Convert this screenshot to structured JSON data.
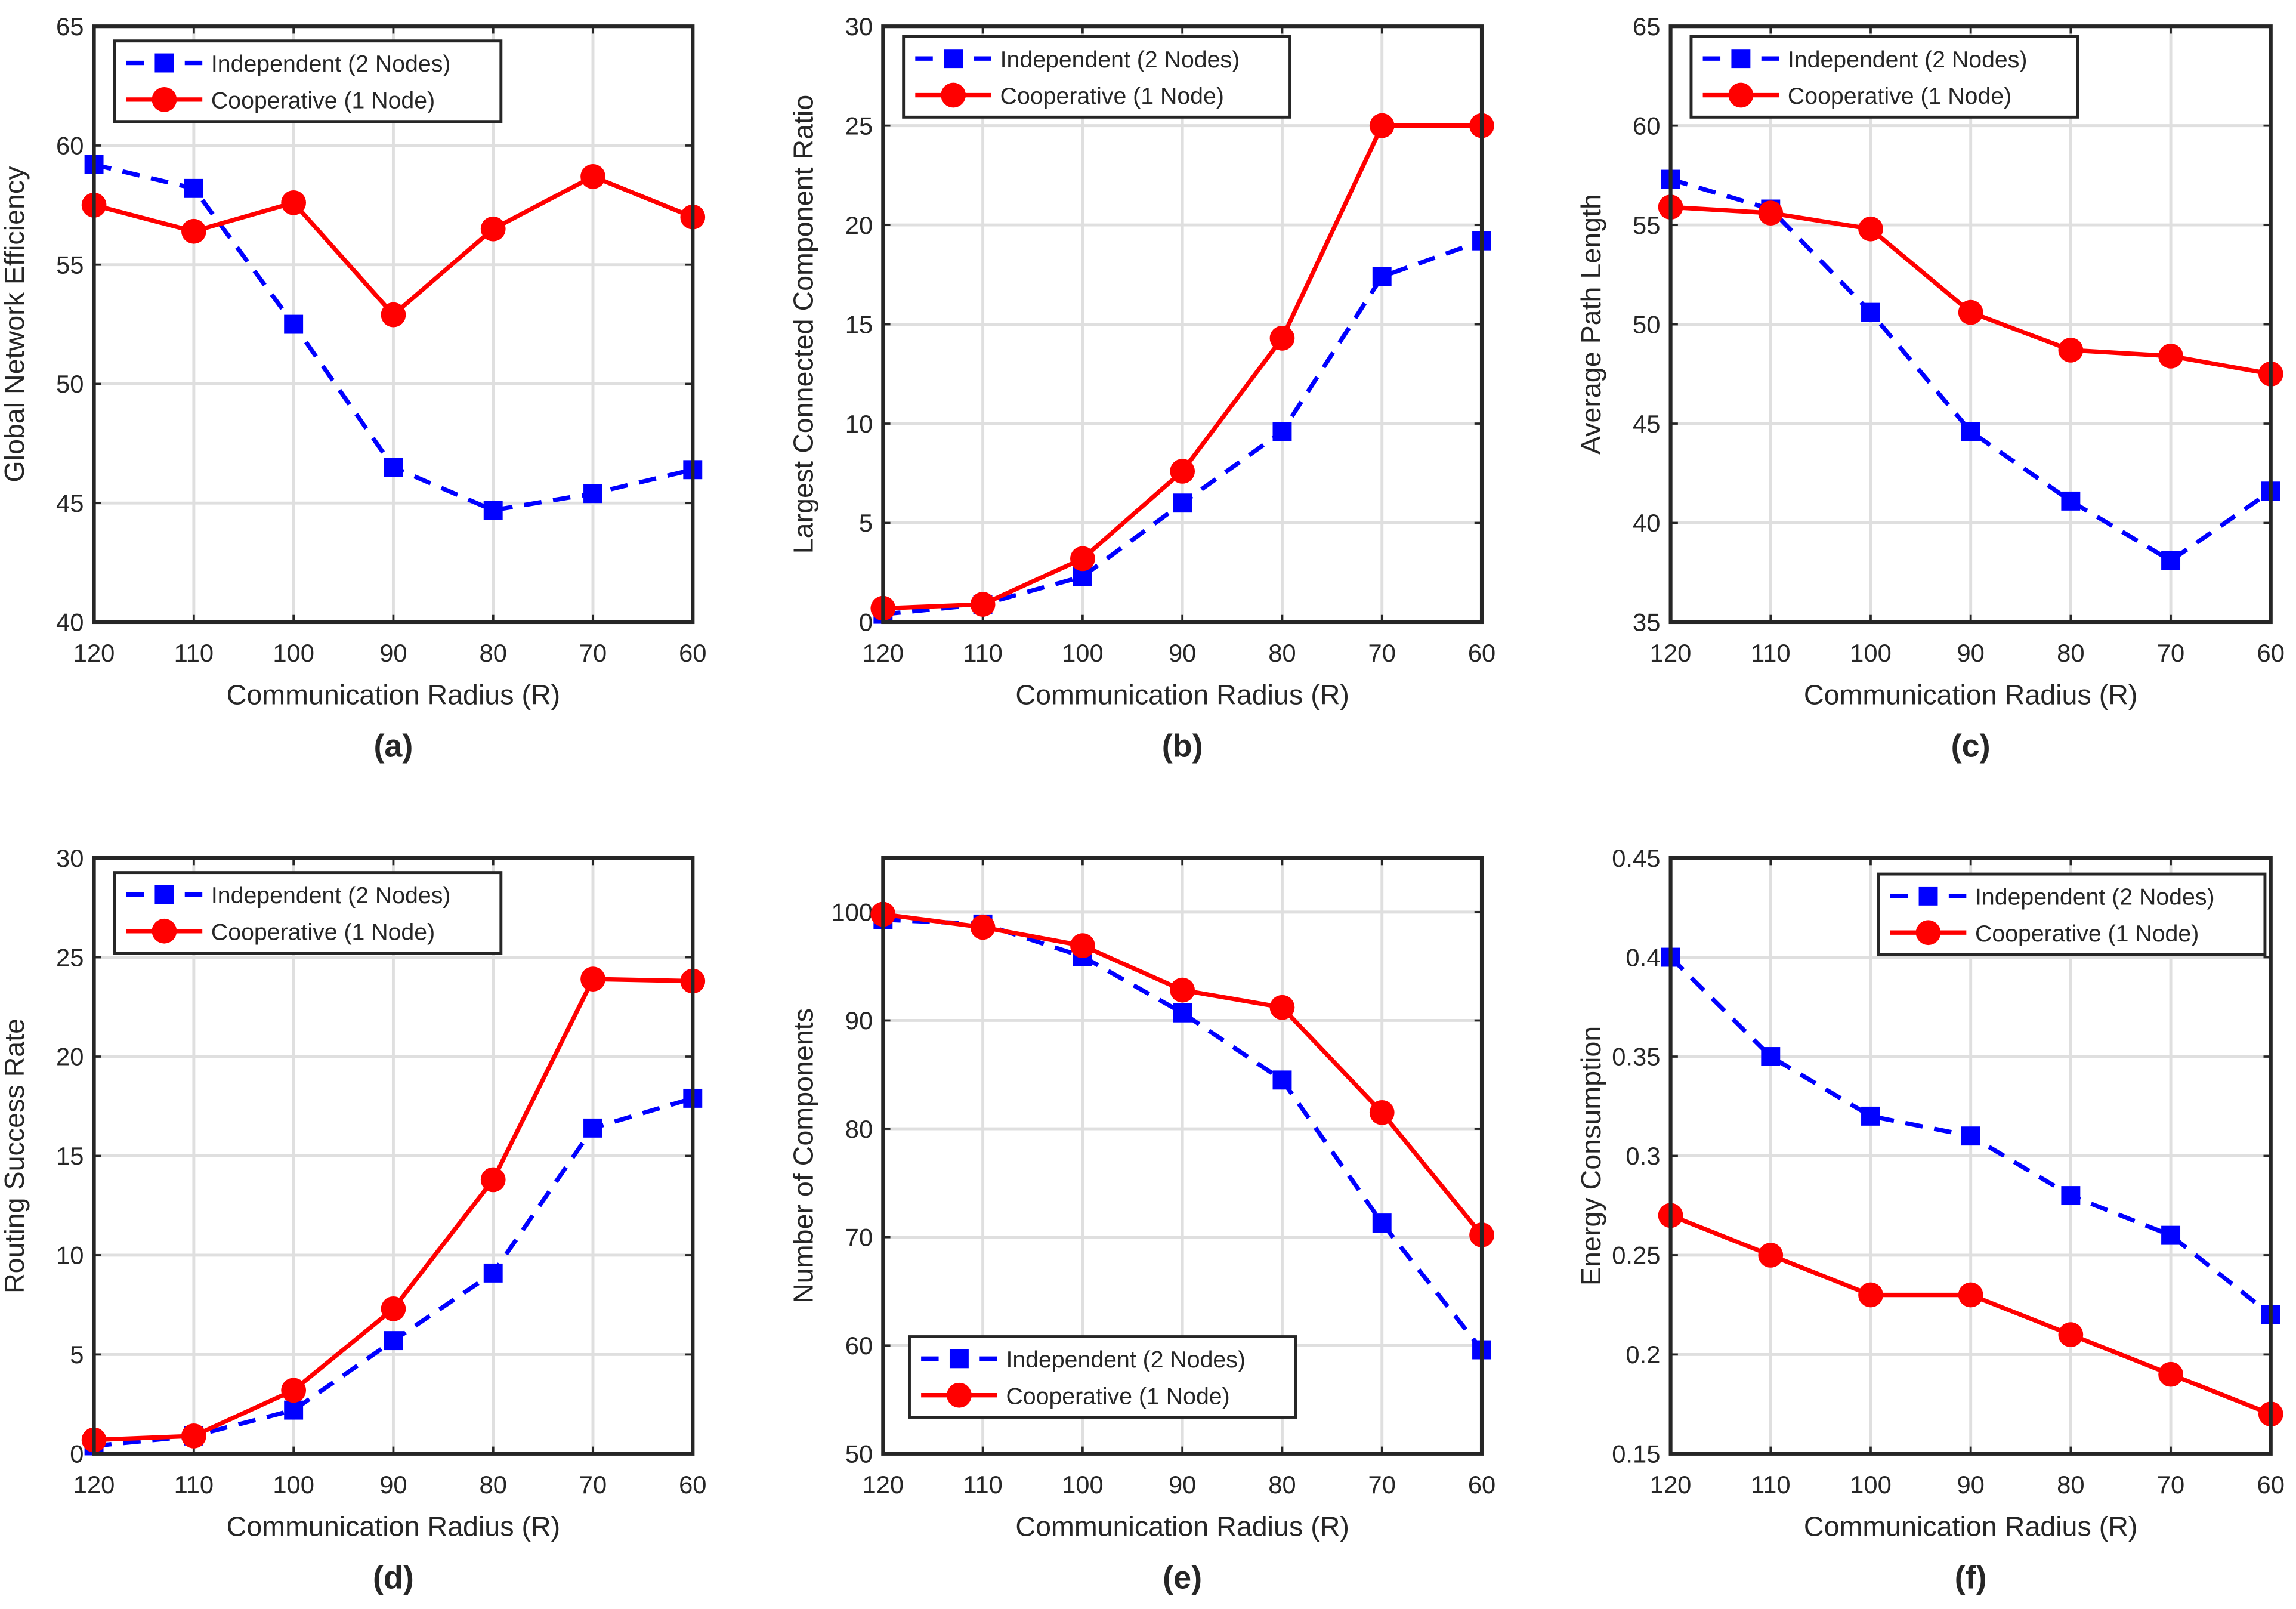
{
  "chart_data": [
    {
      "type": "line",
      "panel_label": "(a)",
      "x": [
        120,
        110,
        100,
        90,
        80,
        70,
        60
      ],
      "xlabel": "Communication Radius (R)",
      "ylabel": "Global Network Efficiency",
      "xlim": [
        120,
        60
      ],
      "ylim": [
        40,
        65
      ],
      "yticks": [
        40,
        45,
        50,
        55,
        60,
        65
      ],
      "grid": true,
      "legend_placement": "top-left",
      "series": [
        {
          "name": "Independent (2 Nodes)",
          "color": "#0000ff",
          "style": "dashed",
          "marker": "square",
          "values": [
            59.2,
            58.2,
            52.5,
            46.5,
            44.7,
            45.4,
            46.4
          ]
        },
        {
          "name": "Cooperative (1 Node)",
          "color": "#ff0000",
          "style": "solid",
          "marker": "circle",
          "values": [
            57.5,
            56.4,
            57.6,
            52.9,
            56.5,
            58.7,
            57.0
          ]
        }
      ]
    },
    {
      "type": "line",
      "panel_label": "(b)",
      "x": [
        120,
        110,
        100,
        90,
        80,
        70,
        60
      ],
      "xlabel": "Communication Radius (R)",
      "ylabel": "Largest Connected Component Ratio",
      "xlim": [
        120,
        60
      ],
      "ylim": [
        0,
        30
      ],
      "yticks": [
        0,
        5,
        10,
        15,
        20,
        25,
        30
      ],
      "grid": true,
      "legend_placement": "top-left",
      "series": [
        {
          "name": "Independent (2 Nodes)",
          "color": "#0000ff",
          "style": "dashed",
          "marker": "square",
          "values": [
            0.4,
            0.9,
            2.3,
            6.0,
            9.6,
            17.4,
            19.2
          ]
        },
        {
          "name": "Cooperative (1 Node)",
          "color": "#ff0000",
          "style": "solid",
          "marker": "circle",
          "values": [
            0.7,
            0.9,
            3.2,
            7.6,
            14.3,
            25.0,
            25.0
          ]
        }
      ]
    },
    {
      "type": "line",
      "panel_label": "(c)",
      "x": [
        120,
        110,
        100,
        90,
        80,
        70,
        60
      ],
      "xlabel": "Communication Radius (R)",
      "ylabel": "Average Path Length",
      "xlim": [
        120,
        60
      ],
      "ylim": [
        35,
        65
      ],
      "yticks": [
        35,
        40,
        45,
        50,
        55,
        60,
        65
      ],
      "grid": true,
      "legend_placement": "top-left",
      "series": [
        {
          "name": "Independent (2 Nodes)",
          "color": "#0000ff",
          "style": "dashed",
          "marker": "square",
          "values": [
            57.3,
            55.8,
            50.6,
            44.6,
            41.1,
            38.1,
            41.6
          ]
        },
        {
          "name": "Cooperative (1 Node)",
          "color": "#ff0000",
          "style": "solid",
          "marker": "circle",
          "values": [
            55.9,
            55.6,
            54.8,
            50.6,
            48.7,
            48.4,
            47.5
          ]
        }
      ]
    },
    {
      "type": "line",
      "panel_label": "(d)",
      "x": [
        120,
        110,
        100,
        90,
        80,
        70,
        60
      ],
      "xlabel": "Communication Radius (R)",
      "ylabel": "Routing Success Rate",
      "xlim": [
        120,
        60
      ],
      "ylim": [
        0,
        30
      ],
      "yticks": [
        0,
        5,
        10,
        15,
        20,
        25,
        30
      ],
      "grid": true,
      "legend_placement": "top-left",
      "series": [
        {
          "name": "Independent (2 Nodes)",
          "color": "#0000ff",
          "style": "dashed",
          "marker": "square",
          "values": [
            0.4,
            0.9,
            2.2,
            5.7,
            9.1,
            16.4,
            17.9
          ]
        },
        {
          "name": "Cooperative (1 Node)",
          "color": "#ff0000",
          "style": "solid",
          "marker": "circle",
          "values": [
            0.7,
            0.9,
            3.2,
            7.3,
            13.8,
            23.9,
            23.8
          ]
        }
      ]
    },
    {
      "type": "line",
      "panel_label": "(e)",
      "x": [
        120,
        110,
        100,
        90,
        80,
        70,
        60
      ],
      "xlabel": "Communication Radius (R)",
      "ylabel": "Number of Components",
      "xlim": [
        120,
        60
      ],
      "ylim": [
        50,
        105
      ],
      "yticks": [
        50,
        60,
        70,
        80,
        90,
        100
      ],
      "grid": true,
      "legend_placement": "bottom-left",
      "series": [
        {
          "name": "Independent (2 Nodes)",
          "color": "#0000ff",
          "style": "dashed",
          "marker": "square",
          "values": [
            99.3,
            98.9,
            95.9,
            90.7,
            84.5,
            71.3,
            59.6
          ]
        },
        {
          "name": "Cooperative (1 Node)",
          "color": "#ff0000",
          "style": "solid",
          "marker": "circle",
          "values": [
            99.8,
            98.6,
            96.9,
            92.8,
            91.2,
            81.5,
            70.2
          ]
        }
      ]
    },
    {
      "type": "line",
      "panel_label": "(f)",
      "x": [
        120,
        110,
        100,
        90,
        80,
        70,
        60
      ],
      "xlabel": "Communication Radius (R)",
      "ylabel": "Energy Consumption",
      "xlim": [
        120,
        60
      ],
      "ylim": [
        0.15,
        0.45
      ],
      "yticks": [
        0.15,
        0.2,
        0.25,
        0.3,
        0.35,
        0.4,
        0.45
      ],
      "grid": true,
      "legend_placement": "top-right",
      "series": [
        {
          "name": "Independent (2 Nodes)",
          "color": "#0000ff",
          "style": "dashed",
          "marker": "square",
          "values": [
            0.4,
            0.35,
            0.32,
            0.31,
            0.28,
            0.26,
            0.22
          ]
        },
        {
          "name": "Cooperative (1 Node)",
          "color": "#ff0000",
          "style": "solid",
          "marker": "circle",
          "values": [
            0.27,
            0.25,
            0.23,
            0.23,
            0.21,
            0.19,
            0.17
          ]
        }
      ]
    }
  ]
}
